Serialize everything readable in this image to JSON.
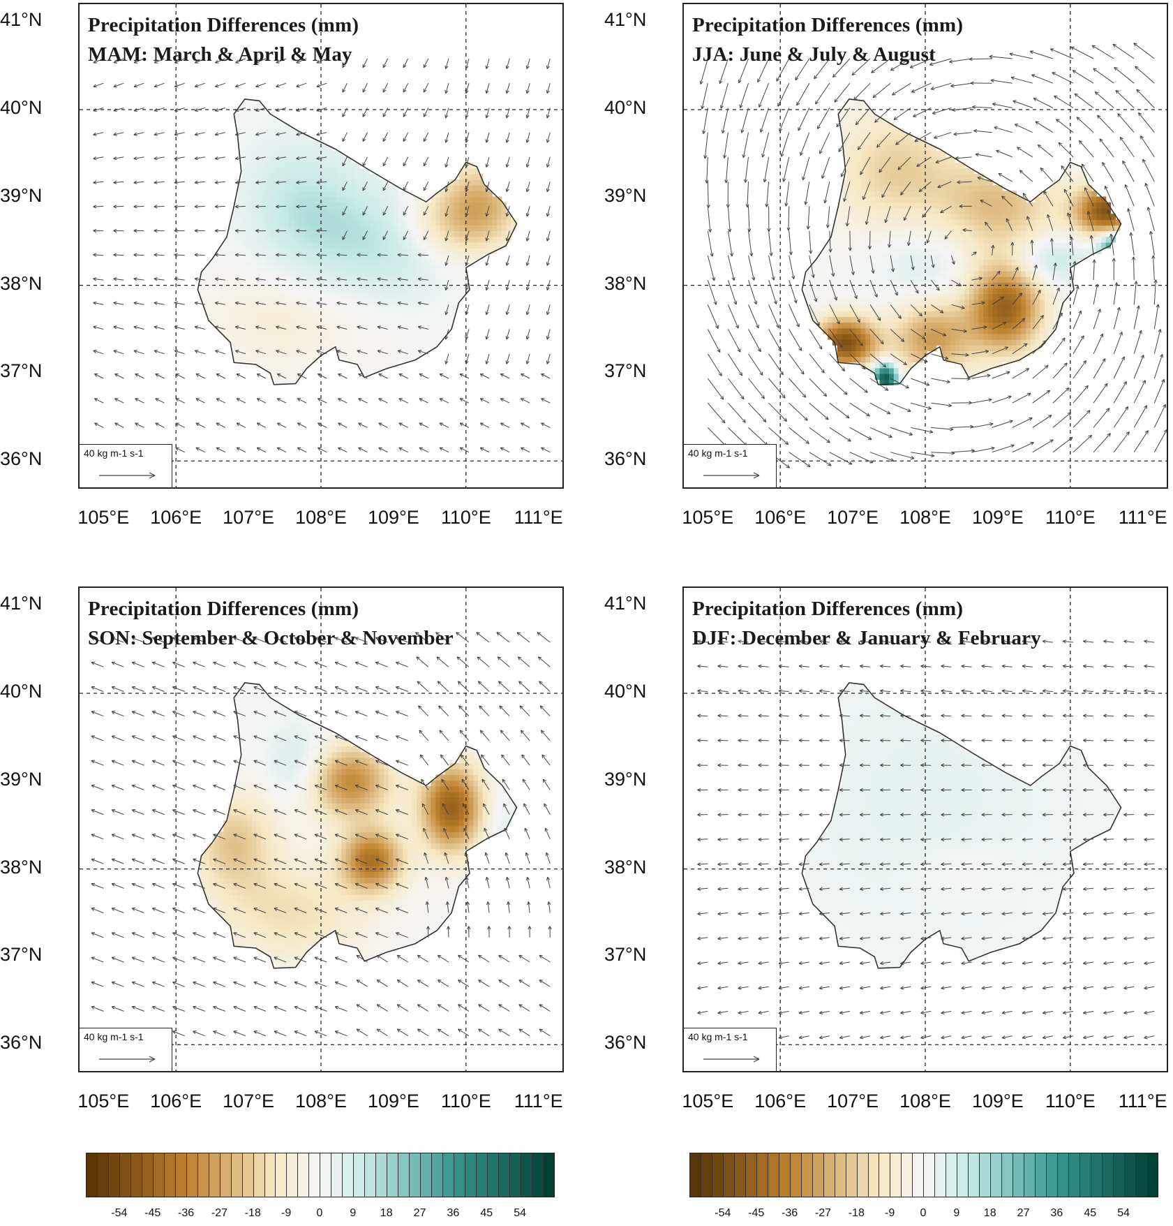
{
  "panels": [
    {
      "id": "mam",
      "title": "Precipitation Differences (mm)",
      "subtitle": "MAM: March & April & May",
      "season": "MAM",
      "pattern": "mam"
    },
    {
      "id": "jja",
      "title": "Precipitation Differences (mm)",
      "subtitle": "JJA: June & July & August",
      "season": "JJA",
      "pattern": "jja"
    },
    {
      "id": "son",
      "title": "Precipitation Differences (mm)",
      "subtitle": "SON: September & October & November",
      "season": "SON",
      "pattern": "son"
    },
    {
      "id": "djf",
      "title": "Precipitation Differences (mm)",
      "subtitle": "DJF: December & January & February",
      "season": "DJF",
      "pattern": "djf"
    }
  ],
  "axes": {
    "lat_labels": [
      "41°N",
      "40°N",
      "39°N",
      "38°N",
      "37°N",
      "36°N"
    ],
    "lat_values": [
      41,
      40,
      39,
      38,
      37,
      36
    ],
    "lon_labels": [
      "105°E",
      "106°E",
      "107°E",
      "108°E",
      "109°E",
      "110°E",
      "111°E"
    ],
    "lon_values": [
      105,
      106,
      107,
      108,
      109,
      110,
      111
    ],
    "lat_range": [
      35.7,
      41.2
    ],
    "lon_range": [
      104.67,
      111.33
    ]
  },
  "reference_vector": {
    "label": "40 kg m-1 s-1"
  },
  "colorbar": {
    "ticks": [
      "-54",
      "-45",
      "-36",
      "-27",
      "-18",
      "-9",
      "0",
      "9",
      "18",
      "27",
      "36",
      "45",
      "54"
    ],
    "tick_values": [
      -54,
      -45,
      -36,
      -27,
      -18,
      -9,
      0,
      9,
      18,
      27,
      36,
      45,
      54
    ],
    "min": -63,
    "max": 63,
    "step": 3,
    "colors": {
      "strong_negative": "#543005",
      "negative": "#bf812d",
      "light_negative": "#f6e8c3",
      "neutral": "#f5f5f5",
      "light_positive": "#c7eae5",
      "positive": "#35978f",
      "strong_positive": "#003c30"
    }
  }
}
